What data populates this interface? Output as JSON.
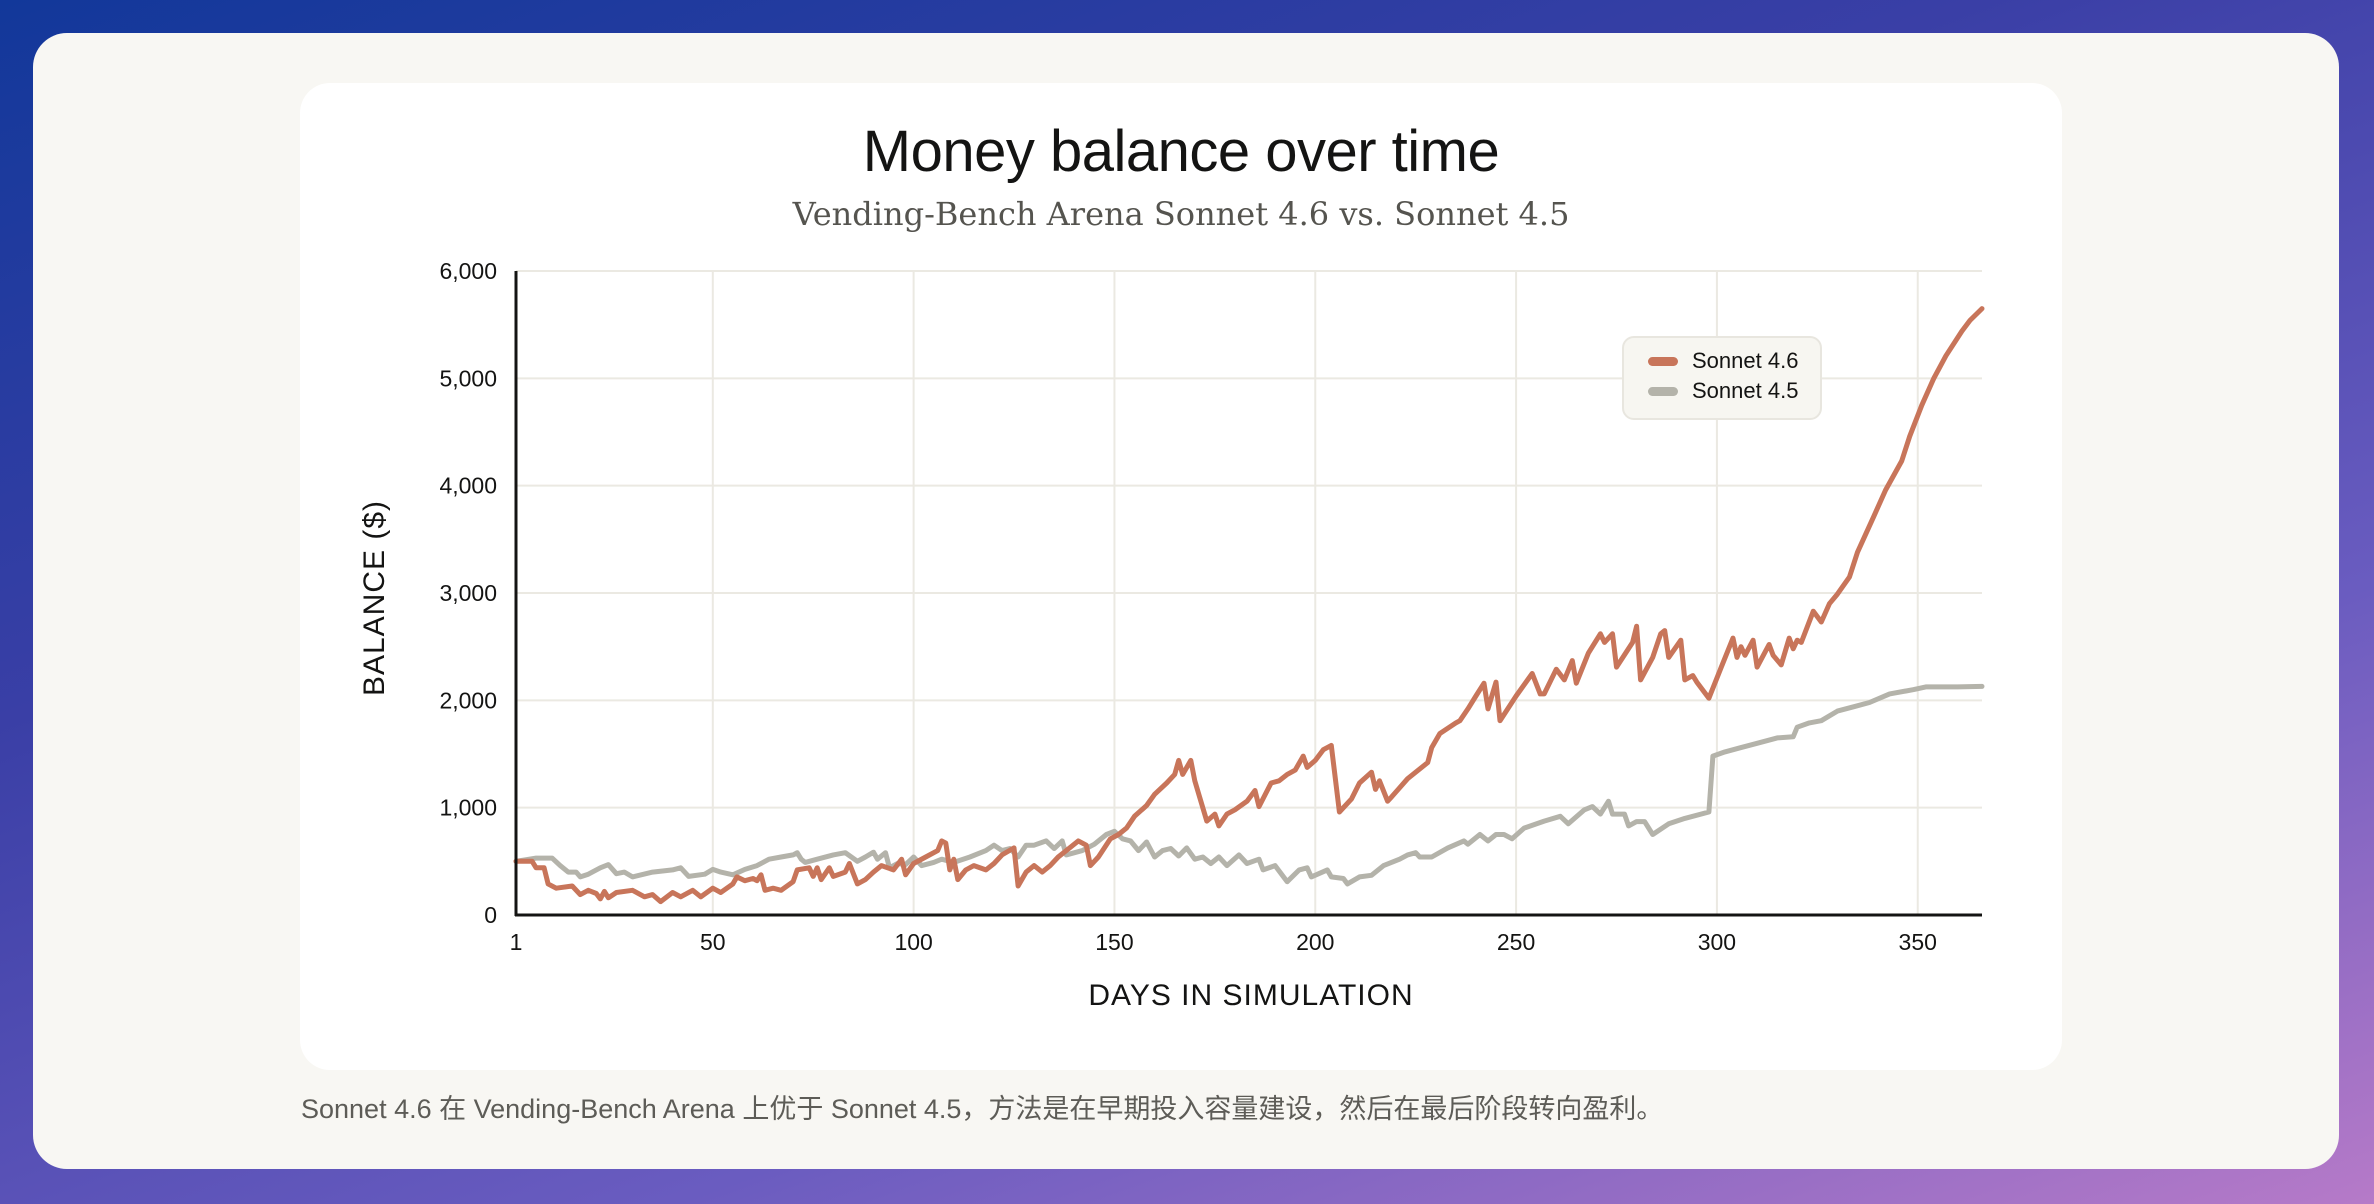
{
  "caption": "Sonnet 4.6 在 Vending-Bench Arena 上优于 Sonnet 4.5，方法是在早期投入容量建设，然后在最后阶段转向盈利。",
  "chart_data": {
    "type": "line",
    "title": "Money balance over time",
    "subtitle": "Vending-Bench Arena Sonnet 4.6 vs. Sonnet 4.5",
    "xlabel": "DAYS IN SIMULATION",
    "ylabel": "BALANCE ($)",
    "xlim": [
      1,
      366
    ],
    "ylim": [
      0,
      6000
    ],
    "xticks": [
      1,
      50,
      100,
      150,
      200,
      250,
      300,
      350
    ],
    "xtick_labels": [
      "1",
      "50",
      "100",
      "150",
      "200",
      "250",
      "300",
      "350"
    ],
    "yticks": [
      0,
      1000,
      2000,
      3000,
      4000,
      5000,
      6000
    ],
    "ytick_labels": [
      "0",
      "1,000",
      "2,000",
      "3,000",
      "4,000",
      "5,000",
      "6,000"
    ],
    "grid": true,
    "legend_position": "top-right",
    "series": [
      {
        "name": "Sonnet 4.6",
        "color": "#c8755a",
        "points": [
          [
            1,
            500
          ],
          [
            5,
            500
          ],
          [
            6,
            440
          ],
          [
            8,
            440
          ],
          [
            9,
            290
          ],
          [
            11,
            250
          ],
          [
            15,
            270
          ],
          [
            17,
            190
          ],
          [
            19,
            230
          ],
          [
            21,
            200
          ],
          [
            22,
            150
          ],
          [
            23,
            220
          ],
          [
            24,
            160
          ],
          [
            26,
            210
          ],
          [
            30,
            230
          ],
          [
            33,
            170
          ],
          [
            35,
            190
          ],
          [
            37,
            125
          ],
          [
            40,
            210
          ],
          [
            42,
            170
          ],
          [
            45,
            230
          ],
          [
            47,
            170
          ],
          [
            50,
            250
          ],
          [
            52,
            210
          ],
          [
            55,
            290
          ],
          [
            56,
            355
          ],
          [
            58,
            320
          ],
          [
            60,
            340
          ],
          [
            61,
            320
          ],
          [
            62,
            375
          ],
          [
            63,
            230
          ],
          [
            65,
            250
          ],
          [
            67,
            230
          ],
          [
            70,
            310
          ],
          [
            71,
            420
          ],
          [
            74,
            440
          ],
          [
            75,
            360
          ],
          [
            76,
            440
          ],
          [
            77,
            330
          ],
          [
            79,
            440
          ],
          [
            80,
            360
          ],
          [
            83,
            400
          ],
          [
            84,
            480
          ],
          [
            86,
            290
          ],
          [
            88,
            330
          ],
          [
            90,
            400
          ],
          [
            92,
            460
          ],
          [
            95,
            420
          ],
          [
            97,
            520
          ],
          [
            98,
            375
          ],
          [
            100,
            480
          ],
          [
            103,
            540
          ],
          [
            106,
            600
          ],
          [
            107,
            690
          ],
          [
            108,
            670
          ],
          [
            109,
            420
          ],
          [
            110,
            520
          ],
          [
            111,
            330
          ],
          [
            113,
            420
          ],
          [
            115,
            460
          ],
          [
            118,
            420
          ],
          [
            120,
            480
          ],
          [
            122,
            560
          ],
          [
            125,
            625
          ],
          [
            126,
            270
          ],
          [
            128,
            400
          ],
          [
            130,
            460
          ],
          [
            132,
            400
          ],
          [
            134,
            460
          ],
          [
            136,
            540
          ],
          [
            138,
            600
          ],
          [
            141,
            690
          ],
          [
            143,
            650
          ],
          [
            144,
            460
          ],
          [
            146,
            540
          ],
          [
            149,
            710
          ],
          [
            151,
            750
          ],
          [
            153,
            810
          ],
          [
            155,
            920
          ],
          [
            158,
            1020
          ],
          [
            160,
            1125
          ],
          [
            163,
            1230
          ],
          [
            165,
            1310
          ],
          [
            166,
            1440
          ],
          [
            167,
            1310
          ],
          [
            169,
            1440
          ],
          [
            170,
            1250
          ],
          [
            171,
            1125
          ],
          [
            173,
            875
          ],
          [
            175,
            940
          ],
          [
            176,
            830
          ],
          [
            178,
            940
          ],
          [
            180,
            980
          ],
          [
            183,
            1060
          ],
          [
            185,
            1160
          ],
          [
            186,
            1010
          ],
          [
            189,
            1230
          ],
          [
            191,
            1250
          ],
          [
            193,
            1310
          ],
          [
            195,
            1350
          ],
          [
            197,
            1480
          ],
          [
            198,
            1375
          ],
          [
            200,
            1440
          ],
          [
            202,
            1540
          ],
          [
            204,
            1580
          ],
          [
            206,
            960
          ],
          [
            209,
            1080
          ],
          [
            211,
            1230
          ],
          [
            214,
            1330
          ],
          [
            215,
            1170
          ],
          [
            216,
            1250
          ],
          [
            218,
            1060
          ],
          [
            219,
            1100
          ],
          [
            223,
            1270
          ],
          [
            225,
            1330
          ],
          [
            228,
            1420
          ],
          [
            229,
            1560
          ],
          [
            231,
            1690
          ],
          [
            235,
            1790
          ],
          [
            236,
            1810
          ],
          [
            238,
            1920
          ],
          [
            240,
            2040
          ],
          [
            242,
            2160
          ],
          [
            243,
            1920
          ],
          [
            245,
            2170
          ],
          [
            246,
            1810
          ],
          [
            250,
            2040
          ],
          [
            254,
            2250
          ],
          [
            256,
            2060
          ],
          [
            257,
            2060
          ],
          [
            260,
            2290
          ],
          [
            262,
            2190
          ],
          [
            264,
            2370
          ],
          [
            265,
            2160
          ],
          [
            268,
            2440
          ],
          [
            271,
            2620
          ],
          [
            272,
            2540
          ],
          [
            274,
            2620
          ],
          [
            275,
            2310
          ],
          [
            279,
            2540
          ],
          [
            280,
            2690
          ],
          [
            281,
            2190
          ],
          [
            284,
            2400
          ],
          [
            286,
            2620
          ],
          [
            287,
            2650
          ],
          [
            288,
            2400
          ],
          [
            291,
            2560
          ],
          [
            292,
            2190
          ],
          [
            294,
            2230
          ],
          [
            295,
            2170
          ],
          [
            298,
            2020
          ],
          [
            301,
            2300
          ],
          [
            304,
            2580
          ],
          [
            305,
            2400
          ],
          [
            306,
            2500
          ],
          [
            307,
            2420
          ],
          [
            309,
            2560
          ],
          [
            310,
            2310
          ],
          [
            313,
            2520
          ],
          [
            314,
            2420
          ],
          [
            316,
            2330
          ],
          [
            318,
            2580
          ],
          [
            319,
            2480
          ],
          [
            320,
            2560
          ],
          [
            321,
            2540
          ],
          [
            324,
            2830
          ],
          [
            326,
            2730
          ],
          [
            328,
            2900
          ],
          [
            330,
            2990
          ],
          [
            333,
            3150
          ],
          [
            335,
            3380
          ],
          [
            339,
            3710
          ],
          [
            342,
            3960
          ],
          [
            346,
            4230
          ],
          [
            348,
            4460
          ],
          [
            351,
            4750
          ],
          [
            354,
            5000
          ],
          [
            357,
            5210
          ],
          [
            361,
            5440
          ],
          [
            363,
            5540
          ],
          [
            366,
            5650
          ]
        ]
      },
      {
        "name": "Sonnet 4.5",
        "color": "#b4b3aa",
        "points": [
          [
            1,
            500
          ],
          [
            6,
            530
          ],
          [
            10,
            530
          ],
          [
            12,
            460
          ],
          [
            14,
            400
          ],
          [
            16,
            400
          ],
          [
            17,
            355
          ],
          [
            19,
            380
          ],
          [
            22,
            440
          ],
          [
            24,
            470
          ],
          [
            26,
            385
          ],
          [
            28,
            400
          ],
          [
            30,
            355
          ],
          [
            35,
            400
          ],
          [
            40,
            420
          ],
          [
            42,
            440
          ],
          [
            44,
            360
          ],
          [
            48,
            380
          ],
          [
            50,
            425
          ],
          [
            52,
            400
          ],
          [
            55,
            375
          ],
          [
            58,
            425
          ],
          [
            61,
            460
          ],
          [
            64,
            520
          ],
          [
            67,
            540
          ],
          [
            70,
            560
          ],
          [
            71,
            580
          ],
          [
            72,
            520
          ],
          [
            73,
            490
          ],
          [
            76,
            520
          ],
          [
            80,
            560
          ],
          [
            83,
            580
          ],
          [
            86,
            500
          ],
          [
            88,
            540
          ],
          [
            90,
            585
          ],
          [
            91,
            520
          ],
          [
            93,
            580
          ],
          [
            94,
            440
          ],
          [
            96,
            480
          ],
          [
            98,
            470
          ],
          [
            100,
            540
          ],
          [
            102,
            460
          ],
          [
            105,
            490
          ],
          [
            107,
            520
          ],
          [
            110,
            490
          ],
          [
            114,
            540
          ],
          [
            118,
            600
          ],
          [
            120,
            650
          ],
          [
            122,
            600
          ],
          [
            124,
            620
          ],
          [
            126,
            540
          ],
          [
            128,
            650
          ],
          [
            130,
            650
          ],
          [
            133,
            690
          ],
          [
            135,
            620
          ],
          [
            137,
            690
          ],
          [
            138,
            560
          ],
          [
            142,
            600
          ],
          [
            145,
            660
          ],
          [
            148,
            750
          ],
          [
            150,
            780
          ],
          [
            152,
            710
          ],
          [
            154,
            690
          ],
          [
            156,
            600
          ],
          [
            158,
            680
          ],
          [
            160,
            540
          ],
          [
            162,
            600
          ],
          [
            164,
            620
          ],
          [
            166,
            550
          ],
          [
            168,
            625
          ],
          [
            170,
            520
          ],
          [
            172,
            540
          ],
          [
            174,
            480
          ],
          [
            176,
            540
          ],
          [
            178,
            460
          ],
          [
            181,
            560
          ],
          [
            183,
            480
          ],
          [
            186,
            520
          ],
          [
            187,
            420
          ],
          [
            190,
            460
          ],
          [
            193,
            310
          ],
          [
            196,
            420
          ],
          [
            198,
            440
          ],
          [
            199,
            355
          ],
          [
            203,
            420
          ],
          [
            204,
            355
          ],
          [
            207,
            340
          ],
          [
            208,
            290
          ],
          [
            211,
            355
          ],
          [
            214,
            370
          ],
          [
            217,
            460
          ],
          [
            221,
            520
          ],
          [
            223,
            560
          ],
          [
            225,
            580
          ],
          [
            226,
            540
          ],
          [
            229,
            540
          ],
          [
            233,
            625
          ],
          [
            237,
            690
          ],
          [
            238,
            660
          ],
          [
            241,
            750
          ],
          [
            243,
            690
          ],
          [
            245,
            750
          ],
          [
            247,
            750
          ],
          [
            249,
            710
          ],
          [
            252,
            810
          ],
          [
            257,
            875
          ],
          [
            261,
            920
          ],
          [
            263,
            850
          ],
          [
            267,
            980
          ],
          [
            269,
            1010
          ],
          [
            271,
            940
          ],
          [
            273,
            1060
          ],
          [
            274,
            940
          ],
          [
            277,
            940
          ],
          [
            278,
            830
          ],
          [
            280,
            870
          ],
          [
            282,
            870
          ],
          [
            284,
            750
          ],
          [
            288,
            850
          ],
          [
            292,
            900
          ],
          [
            298,
            960
          ],
          [
            299,
            1480
          ],
          [
            302,
            1520
          ],
          [
            306,
            1560
          ],
          [
            310,
            1600
          ],
          [
            315,
            1650
          ],
          [
            319,
            1660
          ],
          [
            320,
            1750
          ],
          [
            323,
            1790
          ],
          [
            326,
            1810
          ],
          [
            330,
            1900
          ],
          [
            334,
            1940
          ],
          [
            338,
            1980
          ],
          [
            343,
            2060
          ],
          [
            349,
            2100
          ],
          [
            352,
            2125
          ],
          [
            360,
            2125
          ],
          [
            366,
            2130
          ]
        ]
      }
    ]
  }
}
